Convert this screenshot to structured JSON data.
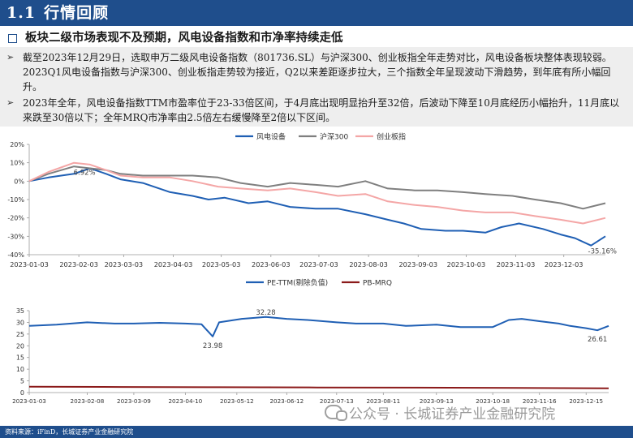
{
  "header": {
    "number": "1.1",
    "title": "行情回顾"
  },
  "subheading": "板块二级市场表现不及预期，风电设备指数和市净率持续走低",
  "bullets": [
    "截至2023年12月29日，选取申万二级风电设备指数（801736.SL）与沪深300、创业板指全年走势对比，风电设备板块整体表现较弱。2023Q1风电设备指数与沪深300、创业板指走势较为接近，Q2以来差距逐步拉大，三个指数全年呈现波动下滑趋势，到年底有所小幅回升。",
    "2023年全年，风电设备指数TTM市盈率位于23-33倍区间，于4月底出现明显抬升至32倍，后波动下降至10月底经历小幅抬升，11月底以来跌至30倍以下；全年MRQ市净率由2.5倍左右缓慢降至2倍以下区间。"
  ],
  "footer": "资料来源：iFinD，长城证券产业金融研究院",
  "watermark": "公众号 · 长城证券产业金融研究院",
  "colors": {
    "brand": "#1f4e8c",
    "wind": "#1f5fb4",
    "hs300": "#7f7f7f",
    "cyb": "#f4a6a6",
    "pe": "#1f5fb4",
    "pb": "#8b1a1a"
  },
  "chart_data": [
    {
      "type": "line",
      "x_ticks": [
        "2023-01-03",
        "2023-02-03",
        "2023-03-03",
        "2023-04-03",
        "2023-05-03",
        "2023-06-03",
        "2023-07-03",
        "2023-08-03",
        "2023-09-03",
        "2023-10-03",
        "2023-11-03",
        "2023-12-03"
      ],
      "y_ticks": [
        "20%",
        "10%",
        "0%",
        "-10%",
        "-20%",
        "-30%",
        "-40%"
      ],
      "ylim": [
        -40,
        20
      ],
      "x_range": [
        "2023-01-03",
        "2023-12-29"
      ],
      "legend_position": "top",
      "series": [
        {
          "name": "风电设备",
          "color": "#1f5fb4",
          "x": [
            "2023-01-03",
            "2023-01-15",
            "2023-01-31",
            "2023-02-10",
            "2023-02-20",
            "2023-03-01",
            "2023-03-15",
            "2023-04-01",
            "2023-04-15",
            "2023-04-25",
            "2023-05-05",
            "2023-05-20",
            "2023-06-01",
            "2023-06-15",
            "2023-07-01",
            "2023-07-15",
            "2023-08-01",
            "2023-08-15",
            "2023-08-25",
            "2023-09-05",
            "2023-09-20",
            "2023-10-01",
            "2023-10-15",
            "2023-10-25",
            "2023-11-05",
            "2023-11-20",
            "2023-12-01",
            "2023-12-10",
            "2023-12-20",
            "2023-12-29"
          ],
          "values": [
            0,
            2,
            4,
            7,
            4,
            1,
            -1,
            -6,
            -8,
            -10,
            -9,
            -12,
            -11,
            -14,
            -15,
            -15,
            -18,
            -21,
            -23,
            -26,
            -27,
            -27,
            -28,
            -25,
            -23,
            -26,
            -29,
            -31,
            -35,
            -30
          ]
        },
        {
          "name": "沪深300",
          "color": "#7f7f7f",
          "x": [
            "2023-01-03",
            "2023-01-15",
            "2023-01-31",
            "2023-02-10",
            "2023-02-20",
            "2023-03-01",
            "2023-03-15",
            "2023-04-01",
            "2023-04-15",
            "2023-05-01",
            "2023-05-15",
            "2023-06-01",
            "2023-06-15",
            "2023-07-01",
            "2023-07-15",
            "2023-08-01",
            "2023-08-15",
            "2023-09-01",
            "2023-09-15",
            "2023-10-01",
            "2023-10-15",
            "2023-11-01",
            "2023-11-15",
            "2023-12-01",
            "2023-12-15",
            "2023-12-29"
          ],
          "values": [
            0,
            4,
            8,
            7,
            6,
            4,
            3,
            3,
            3,
            2,
            -1,
            -3,
            -1,
            -2,
            -3,
            0,
            -4,
            -5,
            -5,
            -6,
            -7,
            -8,
            -10,
            -12,
            -15,
            -12
          ]
        },
        {
          "name": "创业板指",
          "color": "#f4a6a6",
          "x": [
            "2023-01-03",
            "2023-01-15",
            "2023-01-31",
            "2023-02-10",
            "2023-02-20",
            "2023-03-01",
            "2023-03-15",
            "2023-04-01",
            "2023-04-15",
            "2023-05-01",
            "2023-05-15",
            "2023-06-01",
            "2023-06-15",
            "2023-07-01",
            "2023-07-15",
            "2023-08-01",
            "2023-08-15",
            "2023-09-01",
            "2023-09-15",
            "2023-10-01",
            "2023-10-15",
            "2023-11-01",
            "2023-11-15",
            "2023-12-01",
            "2023-12-15",
            "2023-12-29"
          ],
          "values": [
            0,
            5,
            10,
            9,
            6,
            3,
            2,
            2,
            0,
            -3,
            -4,
            -5,
            -4,
            -6,
            -8,
            -7,
            -11,
            -13,
            -14,
            -16,
            -17,
            -17,
            -19,
            -21,
            -23,
            -20
          ]
        }
      ],
      "annotations": [
        {
          "text": "6.92%",
          "x": "2023-02-03",
          "y": 6.92
        },
        {
          "text": "-35.16%",
          "x": "2023-12-20",
          "y": -35
        }
      ]
    },
    {
      "type": "line",
      "x_ticks": [
        "2023-01-03",
        "2023-02-08",
        "2023-03-09",
        "2023-04-10",
        "2023-05-12",
        "2023-06-12",
        "2023-07-13",
        "2023-08-11",
        "2023-09-13",
        "2023-10-18",
        "2023-11-16",
        "2023-12-15"
      ],
      "y_ticks": [
        "35",
        "30",
        "25",
        "20",
        "15",
        "10",
        "5",
        "0"
      ],
      "ylim": [
        0,
        35
      ],
      "x_range": [
        "2023-01-03",
        "2023-12-29"
      ],
      "legend_position": "top",
      "series": [
        {
          "name": "PE-TTM(剔除负值)",
          "color": "#1f5fb4",
          "x": [
            "2023-01-03",
            "2023-01-20",
            "2023-02-08",
            "2023-02-25",
            "2023-03-09",
            "2023-03-25",
            "2023-04-10",
            "2023-04-20",
            "2023-04-27",
            "2023-05-01",
            "2023-05-15",
            "2023-05-30",
            "2023-06-12",
            "2023-06-25",
            "2023-07-13",
            "2023-07-25",
            "2023-08-11",
            "2023-08-25",
            "2023-09-13",
            "2023-09-28",
            "2023-10-18",
            "2023-10-28",
            "2023-11-05",
            "2023-11-16",
            "2023-11-28",
            "2023-12-05",
            "2023-12-15",
            "2023-12-22",
            "2023-12-29"
          ],
          "values": [
            28.5,
            29,
            30,
            29.5,
            29.5,
            29.8,
            29.5,
            29.2,
            23.98,
            30,
            31.5,
            32.28,
            31.5,
            31,
            30,
            29.5,
            29.5,
            28.5,
            29,
            28,
            28,
            31,
            31.5,
            30.5,
            29.5,
            28.5,
            27.5,
            26.61,
            28.5
          ]
        },
        {
          "name": "PB-MRQ",
          "color": "#8b1a1a",
          "x": [
            "2023-01-03",
            "2023-03-01",
            "2023-05-01",
            "2023-07-01",
            "2023-09-01",
            "2023-11-01",
            "2023-12-29"
          ],
          "values": [
            2.5,
            2.4,
            2.3,
            2.2,
            2.1,
            2.0,
            1.8
          ]
        }
      ],
      "annotations": [
        {
          "text": "32.28",
          "x": "2023-05-30",
          "y": 32.28
        },
        {
          "text": "23.98",
          "x": "2023-04-27",
          "y": 23.98
        },
        {
          "text": "26.61",
          "x": "2023-12-22",
          "y": 26.61
        }
      ]
    }
  ]
}
